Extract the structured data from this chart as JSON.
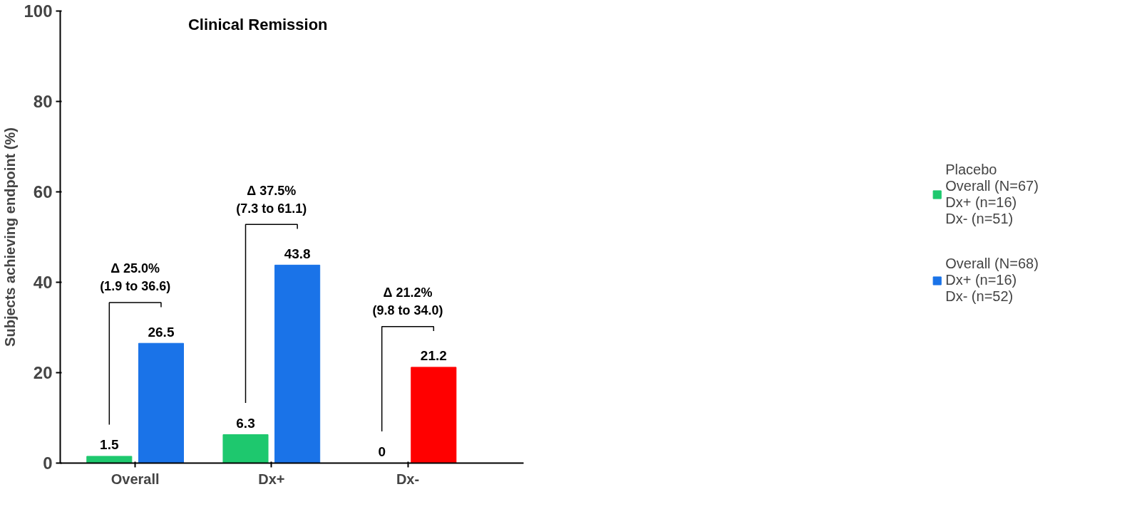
{
  "chart_data": {
    "type": "bar",
    "title": "Clinical Remission",
    "ylabel": "Subjects achieving endpoint (%)",
    "categories": [
      "Overall",
      "Dx+",
      "Dx-"
    ],
    "series": [
      {
        "name": "Placebo\nOverall (N=67)\nDx+ (n=16)\nDx- (n=51)",
        "color": "#1ec86e",
        "values": [
          1.5,
          6.3,
          0
        ]
      },
      {
        "name": "Overall (N=68)\nDx+ (n=16)\nDx- (n=52)",
        "colors": [
          "#1a73e8",
          "#1a73e8",
          "#ff0000"
        ],
        "values": [
          26.5,
          43.8,
          21.2
        ]
      }
    ],
    "ylim": [
      0,
      100
    ],
    "yticks": [
      0,
      20,
      40,
      60,
      80,
      100
    ],
    "data_labels": true,
    "grid": false,
    "legend": "right",
    "annotations": [
      "Δ 25.0%\n(1.9 to 36.6)",
      "Δ 37.5%\n(7.3 to 61.1)",
      "Δ 21.2%\n(9.8 to 34.0)"
    ]
  }
}
